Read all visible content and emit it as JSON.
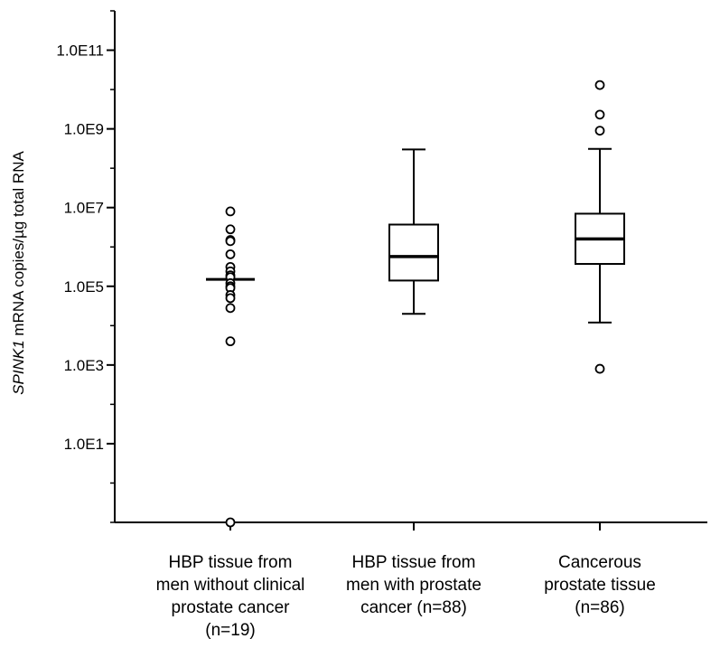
{
  "chart_data": {
    "type": "boxplot",
    "y_scale": "log10",
    "ylim": [
      0.1,
      1000000000000.0
    ],
    "ylabel_italic": "SPINK1",
    "ylabel_rest": " mRNA copies/µg total RNA",
    "y_ticks": [
      {
        "value": 10,
        "label": "1.0E1"
      },
      {
        "value": 1000,
        "label": "1.0E3"
      },
      {
        "value": 100000,
        "label": "1.0E5"
      },
      {
        "value": 10000000,
        "label": "1.0E7"
      },
      {
        "value": 1000000000,
        "label": "1.0E9"
      },
      {
        "value": 100000000000,
        "label": "1.0E11"
      }
    ],
    "groups": [
      {
        "label_lines": [
          "HBP tissue from",
          "men without clinical",
          "prostate cancer",
          "(n=19)"
        ],
        "median": 150000,
        "q1": null,
        "q3": null,
        "whisker_low": null,
        "whisker_high": null,
        "points": [
          8000000,
          2800000,
          1500000,
          1400000,
          650000,
          310000,
          240000,
          190000,
          170000,
          120000,
          100000,
          90000,
          60000,
          50000,
          28000,
          4000,
          0.1
        ]
      },
      {
        "label_lines": [
          "HBP tissue from",
          "men with prostate",
          "cancer (n=88)"
        ],
        "median": 570000,
        "q1": 140000,
        "q3": 3700000,
        "whisker_low": 20000,
        "whisker_high": 300000000,
        "points": []
      },
      {
        "label_lines": [
          "Cancerous",
          "prostate tissue",
          "(n=86)"
        ],
        "median": 1600000,
        "q1": 370000,
        "q3": 7000000,
        "whisker_low": 12000,
        "whisker_high": 310000000,
        "points": [
          13000000000,
          2300000000,
          900000000,
          800
        ]
      }
    ]
  }
}
